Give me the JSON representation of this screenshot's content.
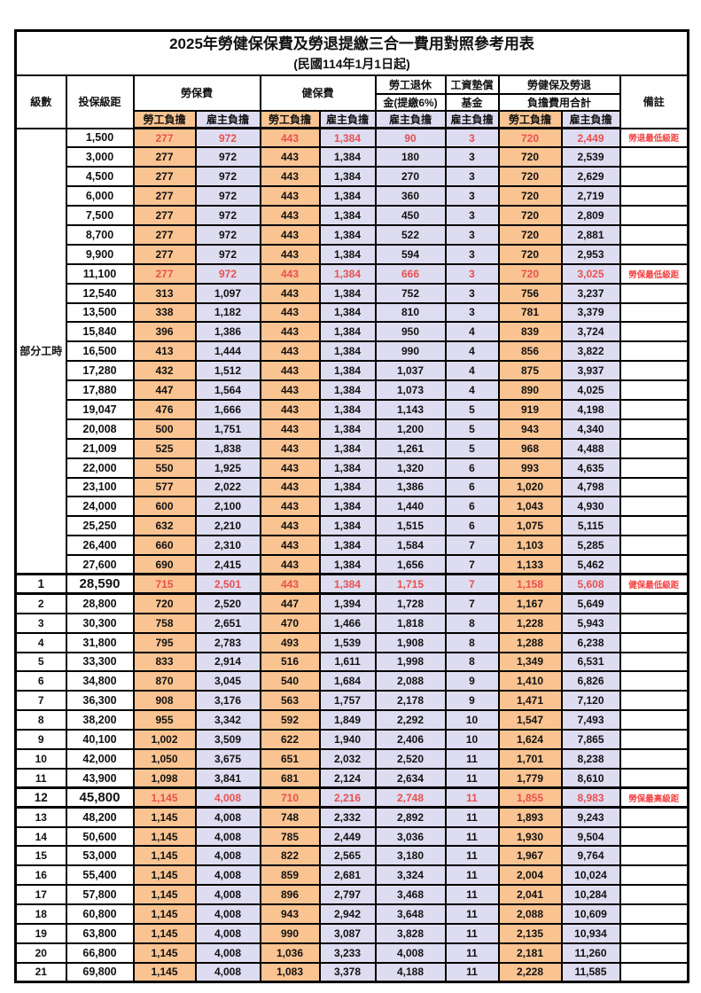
{
  "title": "2025年勞健保保費及勞退提繳三合一費用對照參考用表",
  "subtitle": "(民國114年1月1日起)",
  "colors": {
    "employee_bg": "#FAC492",
    "employer_bg": "#DEDCF0",
    "highlight_red": "#E85050",
    "note_red": "#F44242"
  },
  "header": {
    "level": "級數",
    "salary": "投保級距",
    "labor": "勞保費",
    "health": "健保費",
    "pension_line1": "勞工退休",
    "pension_line2": "金(提繳6%)",
    "fund_line1": "工資墊償",
    "fund_line2": "基金",
    "total_line1": "勞健保及勞退",
    "total_line2": "負擔費用合計",
    "note": "備註",
    "employee": "勞工負擔",
    "employer": "雇主負擔",
    "part_time": "部分工時"
  },
  "rows": [
    {
      "level": "",
      "salary": "1,500",
      "values": [
        "277",
        "972",
        "443",
        "1,384",
        "90",
        "3",
        "720",
        "2,449"
      ],
      "note": "勞退最低級距",
      "red": true,
      "big": false
    },
    {
      "level": "",
      "salary": "3,000",
      "values": [
        "277",
        "972",
        "443",
        "1,384",
        "180",
        "3",
        "720",
        "2,539"
      ],
      "note": "",
      "red": false,
      "big": false
    },
    {
      "level": "",
      "salary": "4,500",
      "values": [
        "277",
        "972",
        "443",
        "1,384",
        "270",
        "3",
        "720",
        "2,629"
      ],
      "note": "",
      "red": false,
      "big": false
    },
    {
      "level": "",
      "salary": "6,000",
      "values": [
        "277",
        "972",
        "443",
        "1,384",
        "360",
        "3",
        "720",
        "2,719"
      ],
      "note": "",
      "red": false,
      "big": false
    },
    {
      "level": "",
      "salary": "7,500",
      "values": [
        "277",
        "972",
        "443",
        "1,384",
        "450",
        "3",
        "720",
        "2,809"
      ],
      "note": "",
      "red": false,
      "big": false
    },
    {
      "level": "",
      "salary": "8,700",
      "values": [
        "277",
        "972",
        "443",
        "1,384",
        "522",
        "3",
        "720",
        "2,881"
      ],
      "note": "",
      "red": false,
      "big": false
    },
    {
      "level": "",
      "salary": "9,900",
      "values": [
        "277",
        "972",
        "443",
        "1,384",
        "594",
        "3",
        "720",
        "2,953"
      ],
      "note": "",
      "red": false,
      "big": false
    },
    {
      "level": "",
      "salary": "11,100",
      "values": [
        "277",
        "972",
        "443",
        "1,384",
        "666",
        "3",
        "720",
        "3,025"
      ],
      "note": "勞保最低級距",
      "red": true,
      "big": false
    },
    {
      "level": "",
      "salary": "12,540",
      "values": [
        "313",
        "1,097",
        "443",
        "1,384",
        "752",
        "3",
        "756",
        "3,237"
      ],
      "note": "",
      "red": false,
      "big": false
    },
    {
      "level": "",
      "salary": "13,500",
      "values": [
        "338",
        "1,182",
        "443",
        "1,384",
        "810",
        "3",
        "781",
        "3,379"
      ],
      "note": "",
      "red": false,
      "big": false
    },
    {
      "level": "",
      "salary": "15,840",
      "values": [
        "396",
        "1,386",
        "443",
        "1,384",
        "950",
        "4",
        "839",
        "3,724"
      ],
      "note": "",
      "red": false,
      "big": false
    },
    {
      "level": "",
      "salary": "16,500",
      "values": [
        "413",
        "1,444",
        "443",
        "1,384",
        "990",
        "4",
        "856",
        "3,822"
      ],
      "note": "",
      "red": false,
      "big": false
    },
    {
      "level": "",
      "salary": "17,280",
      "values": [
        "432",
        "1,512",
        "443",
        "1,384",
        "1,037",
        "4",
        "875",
        "3,937"
      ],
      "note": "",
      "red": false,
      "big": false
    },
    {
      "level": "",
      "salary": "17,880",
      "values": [
        "447",
        "1,564",
        "443",
        "1,384",
        "1,073",
        "4",
        "890",
        "4,025"
      ],
      "note": "",
      "red": false,
      "big": false
    },
    {
      "level": "",
      "salary": "19,047",
      "values": [
        "476",
        "1,666",
        "443",
        "1,384",
        "1,143",
        "5",
        "919",
        "4,198"
      ],
      "note": "",
      "red": false,
      "big": false
    },
    {
      "level": "",
      "salary": "20,008",
      "values": [
        "500",
        "1,751",
        "443",
        "1,384",
        "1,200",
        "5",
        "943",
        "4,340"
      ],
      "note": "",
      "red": false,
      "big": false
    },
    {
      "level": "",
      "salary": "21,009",
      "values": [
        "525",
        "1,838",
        "443",
        "1,384",
        "1,261",
        "5",
        "968",
        "4,488"
      ],
      "note": "",
      "red": false,
      "big": false
    },
    {
      "level": "",
      "salary": "22,000",
      "values": [
        "550",
        "1,925",
        "443",
        "1,384",
        "1,320",
        "6",
        "993",
        "4,635"
      ],
      "note": "",
      "red": false,
      "big": false
    },
    {
      "level": "",
      "salary": "23,100",
      "values": [
        "577",
        "2,022",
        "443",
        "1,384",
        "1,386",
        "6",
        "1,020",
        "4,798"
      ],
      "note": "",
      "red": false,
      "big": false
    },
    {
      "level": "",
      "salary": "24,000",
      "values": [
        "600",
        "2,100",
        "443",
        "1,384",
        "1,440",
        "6",
        "1,043",
        "4,930"
      ],
      "note": "",
      "red": false,
      "big": false
    },
    {
      "level": "",
      "salary": "25,250",
      "values": [
        "632",
        "2,210",
        "443",
        "1,384",
        "1,515",
        "6",
        "1,075",
        "5,115"
      ],
      "note": "",
      "red": false,
      "big": false
    },
    {
      "level": "",
      "salary": "26,400",
      "values": [
        "660",
        "2,310",
        "443",
        "1,384",
        "1,584",
        "7",
        "1,103",
        "5,285"
      ],
      "note": "",
      "red": false,
      "big": false
    },
    {
      "level": "",
      "salary": "27,600",
      "values": [
        "690",
        "2,415",
        "443",
        "1,384",
        "1,656",
        "7",
        "1,133",
        "5,462"
      ],
      "note": "",
      "red": false,
      "big": false
    },
    {
      "level": "1",
      "salary": "28,590",
      "values": [
        "715",
        "2,501",
        "443",
        "1,384",
        "1,715",
        "7",
        "1,158",
        "5,608"
      ],
      "note": "健保最低級距",
      "red": true,
      "big": true
    },
    {
      "level": "2",
      "salary": "28,800",
      "values": [
        "720",
        "2,520",
        "447",
        "1,394",
        "1,728",
        "7",
        "1,167",
        "5,649"
      ],
      "note": "",
      "red": false,
      "big": false
    },
    {
      "level": "3",
      "salary": "30,300",
      "values": [
        "758",
        "2,651",
        "470",
        "1,466",
        "1,818",
        "8",
        "1,228",
        "5,943"
      ],
      "note": "",
      "red": false,
      "big": false
    },
    {
      "level": "4",
      "salary": "31,800",
      "values": [
        "795",
        "2,783",
        "493",
        "1,539",
        "1,908",
        "8",
        "1,288",
        "6,238"
      ],
      "note": "",
      "red": false,
      "big": false
    },
    {
      "level": "5",
      "salary": "33,300",
      "values": [
        "833",
        "2,914",
        "516",
        "1,611",
        "1,998",
        "8",
        "1,349",
        "6,531"
      ],
      "note": "",
      "red": false,
      "big": false
    },
    {
      "level": "6",
      "salary": "34,800",
      "values": [
        "870",
        "3,045",
        "540",
        "1,684",
        "2,088",
        "9",
        "1,410",
        "6,826"
      ],
      "note": "",
      "red": false,
      "big": false
    },
    {
      "level": "7",
      "salary": "36,300",
      "values": [
        "908",
        "3,176",
        "563",
        "1,757",
        "2,178",
        "9",
        "1,471",
        "7,120"
      ],
      "note": "",
      "red": false,
      "big": false
    },
    {
      "level": "8",
      "salary": "38,200",
      "values": [
        "955",
        "3,342",
        "592",
        "1,849",
        "2,292",
        "10",
        "1,547",
        "7,493"
      ],
      "note": "",
      "red": false,
      "big": false
    },
    {
      "level": "9",
      "salary": "40,100",
      "values": [
        "1,002",
        "3,509",
        "622",
        "1,940",
        "2,406",
        "10",
        "1,624",
        "7,865"
      ],
      "note": "",
      "red": false,
      "big": false
    },
    {
      "level": "10",
      "salary": "42,000",
      "values": [
        "1,050",
        "3,675",
        "651",
        "2,032",
        "2,520",
        "11",
        "1,701",
        "8,238"
      ],
      "note": "",
      "red": false,
      "big": false
    },
    {
      "level": "11",
      "salary": "43,900",
      "values": [
        "1,098",
        "3,841",
        "681",
        "2,124",
        "2,634",
        "11",
        "1,779",
        "8,610"
      ],
      "note": "",
      "red": false,
      "big": false
    },
    {
      "level": "12",
      "salary": "45,800",
      "values": [
        "1,145",
        "4,008",
        "710",
        "2,216",
        "2,748",
        "11",
        "1,855",
        "8,983"
      ],
      "note": "勞保最高級距",
      "red": true,
      "big": true
    },
    {
      "level": "13",
      "salary": "48,200",
      "values": [
        "1,145",
        "4,008",
        "748",
        "2,332",
        "2,892",
        "11",
        "1,893",
        "9,243"
      ],
      "note": "",
      "red": false,
      "big": false
    },
    {
      "level": "14",
      "salary": "50,600",
      "values": [
        "1,145",
        "4,008",
        "785",
        "2,449",
        "3,036",
        "11",
        "1,930",
        "9,504"
      ],
      "note": "",
      "red": false,
      "big": false
    },
    {
      "level": "15",
      "salary": "53,000",
      "values": [
        "1,145",
        "4,008",
        "822",
        "2,565",
        "3,180",
        "11",
        "1,967",
        "9,764"
      ],
      "note": "",
      "red": false,
      "big": false
    },
    {
      "level": "16",
      "salary": "55,400",
      "values": [
        "1,145",
        "4,008",
        "859",
        "2,681",
        "3,324",
        "11",
        "2,004",
        "10,024"
      ],
      "note": "",
      "red": false,
      "big": false
    },
    {
      "level": "17",
      "salary": "57,800",
      "values": [
        "1,145",
        "4,008",
        "896",
        "2,797",
        "3,468",
        "11",
        "2,041",
        "10,284"
      ],
      "note": "",
      "red": false,
      "big": false
    },
    {
      "level": "18",
      "salary": "60,800",
      "values": [
        "1,145",
        "4,008",
        "943",
        "2,942",
        "3,648",
        "11",
        "2,088",
        "10,609"
      ],
      "note": "",
      "red": false,
      "big": false
    },
    {
      "level": "19",
      "salary": "63,800",
      "values": [
        "1,145",
        "4,008",
        "990",
        "3,087",
        "3,828",
        "11",
        "2,135",
        "10,934"
      ],
      "note": "",
      "red": false,
      "big": false
    },
    {
      "level": "20",
      "salary": "66,800",
      "values": [
        "1,145",
        "4,008",
        "1,036",
        "3,233",
        "4,008",
        "11",
        "2,181",
        "11,260"
      ],
      "note": "",
      "red": false,
      "big": false
    },
    {
      "level": "21",
      "salary": "69,800",
      "values": [
        "1,145",
        "4,008",
        "1,083",
        "3,378",
        "4,188",
        "11",
        "2,228",
        "11,585"
      ],
      "note": "",
      "red": false,
      "big": false
    }
  ]
}
